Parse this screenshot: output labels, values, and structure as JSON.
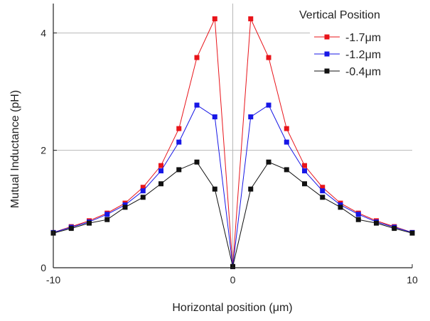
{
  "chart_data": {
    "type": "line",
    "title": "",
    "xlabel": "Horizontal position (μm)",
    "ylabel": "Mutual Inductance (pH)",
    "xlim": [
      -10,
      10
    ],
    "ylim": [
      0,
      4.5
    ],
    "x_ticks": [
      "-10",
      "0",
      "10"
    ],
    "y_ticks": [
      "0",
      "2",
      "4"
    ],
    "x_tick_values": [
      -10,
      0,
      10
    ],
    "y_tick_values": [
      0,
      2,
      4
    ],
    "grid": true,
    "grid_lines_y": [
      2,
      4
    ],
    "grid_lines_x": [
      0
    ],
    "legend": {
      "title": "Vertical Position",
      "placement": "top-right"
    },
    "x": [
      -10,
      -9,
      -8,
      -7,
      -6,
      -5,
      -4,
      -3,
      -2,
      -1,
      0,
      1,
      2,
      3,
      4,
      5,
      6,
      7,
      8,
      9,
      10
    ],
    "series": [
      {
        "name": "-1.7μm",
        "color": "#e8141a",
        "marker": "square",
        "values": [
          0.6,
          0.7,
          0.8,
          0.93,
          1.1,
          1.37,
          1.74,
          2.37,
          3.58,
          4.24,
          0.02,
          4.24,
          3.58,
          2.37,
          1.74,
          1.37,
          1.1,
          0.93,
          0.8,
          0.7,
          0.6
        ]
      },
      {
        "name": "-1.2μm",
        "color": "#1717e6",
        "marker": "square",
        "values": [
          0.6,
          0.69,
          0.78,
          0.91,
          1.07,
          1.31,
          1.65,
          2.14,
          2.77,
          2.57,
          0.02,
          2.57,
          2.77,
          2.14,
          1.65,
          1.31,
          1.07,
          0.91,
          0.78,
          0.69,
          0.6
        ]
      },
      {
        "name": "-0.4μm",
        "color": "#111111",
        "marker": "square",
        "values": [
          0.59,
          0.67,
          0.76,
          0.82,
          1.03,
          1.2,
          1.43,
          1.67,
          1.8,
          1.34,
          0.02,
          1.34,
          1.8,
          1.67,
          1.43,
          1.2,
          1.03,
          0.82,
          0.76,
          0.67,
          0.59
        ]
      }
    ]
  }
}
